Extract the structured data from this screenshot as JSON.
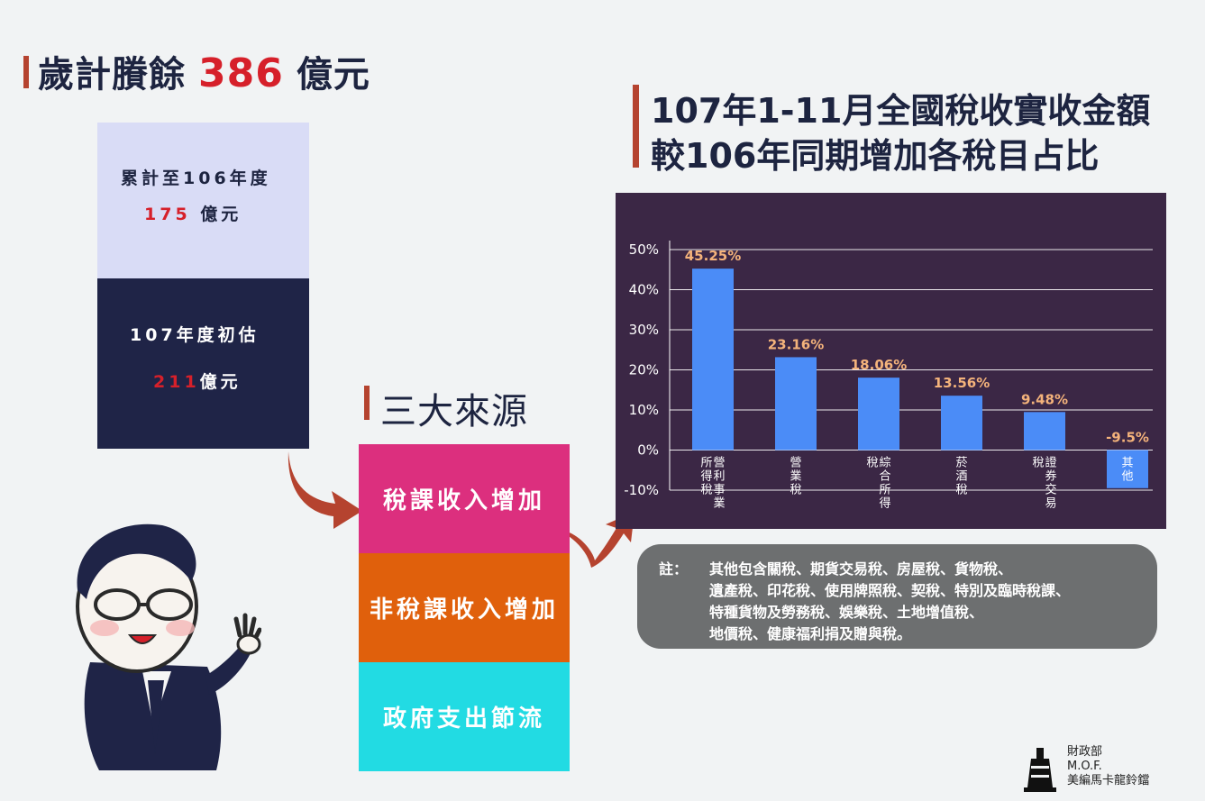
{
  "surplus": {
    "prefix": "歲計賸餘",
    "amount": "386",
    "unit": "億元"
  },
  "box_top": {
    "line1": "累計至106年度",
    "amount": "175",
    "unit": "億元"
  },
  "box_bottom": {
    "line1": "107年度初估",
    "amount": "211",
    "unit": "億元"
  },
  "sources": {
    "title": "三大來源",
    "items": [
      {
        "label": "稅課收入增加",
        "color": "#dc2f7e"
      },
      {
        "label": "非稅課收入增加",
        "color": "#e0600c"
      },
      {
        "label": "政府支出節流",
        "color": "#22dbe3"
      }
    ]
  },
  "chart_title": {
    "line1": "107年1-11月全國稅收實收金額",
    "line2": "較106年同期增加各稅目占比"
  },
  "chart_data": {
    "type": "bar",
    "categories": [
      "營利事業所得稅",
      "營業稅",
      "綜合所得稅",
      "菸酒稅",
      "證券交易稅",
      "其他"
    ],
    "values": [
      45.25,
      23.16,
      18.06,
      13.56,
      9.48,
      -9.5
    ],
    "value_labels": [
      "45.25%",
      "23.16%",
      "18.06%",
      "13.56%",
      "9.48%",
      "-9.5%"
    ],
    "y_ticks": [
      "50%",
      "40%",
      "30%",
      "20%",
      "10%",
      "0%",
      "-10%"
    ],
    "ylim": [
      -10,
      50
    ],
    "bar_color": "#4b8cf7",
    "label_color": "#f4b37b",
    "grid": true,
    "xlabel": "",
    "ylabel": ""
  },
  "note": {
    "label": "註：",
    "lines": [
      "其他包含關稅、期貨交易稅、房屋稅、貨物稅、",
      "遺產稅、印花稅、使用牌照稅、契稅、特別及臨時稅課、",
      "特種貨物及勞務稅、娛樂稅、土地增值稅、",
      "地價稅、健康福利捐及贈與稅。"
    ]
  },
  "logo": {
    "line1": "財政部",
    "line2": "M.O.F.",
    "line3": "美編馬卡龍鈴鐺"
  }
}
